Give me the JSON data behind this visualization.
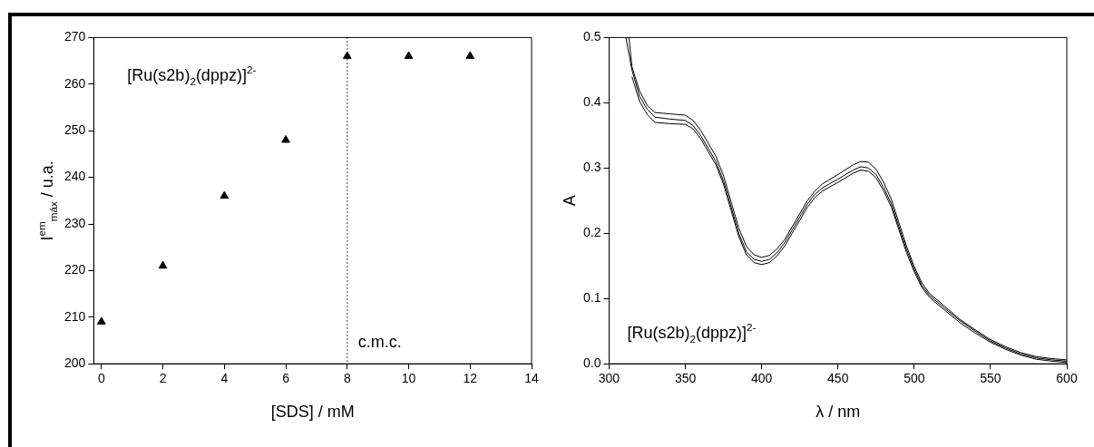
{
  "chart_data": [
    {
      "type": "scatter",
      "xlabel": "[SDS] / mM",
      "ylabel": "I$^{em}$$_{máx}$ / u.a.",
      "annotations": [
        "[Ru(s2b)$_{2}$(dppz)]$^{2-}$"
      ],
      "x": [
        0,
        2,
        4,
        6,
        8,
        10,
        12
      ],
      "series": [
        {
          "color": "#000000",
          "values": [
            209,
            221,
            236,
            248,
            266,
            266,
            266
          ]
        }
      ],
      "marker": "triangle",
      "xlim": [
        -0.25,
        14
      ],
      "xticks": [
        0,
        2,
        4,
        6,
        8,
        10,
        12,
        14
      ],
      "ylim": [
        200,
        270
      ],
      "yticks": [
        200,
        210,
        220,
        230,
        240,
        250,
        260,
        270
      ],
      "ref_lines": [
        {
          "axis": "x",
          "value": 8,
          "label": "c.m.c.",
          "line_style": "dotted",
          "color": "#000000"
        }
      ]
    },
    {
      "type": "line",
      "xlabel": "λ / nm",
      "ylabel": "A",
      "annotations": [
        "[Ru(s2b)$_{2}$(dppz)]$^{2-}$"
      ],
      "x": [
        311,
        315,
        320,
        325,
        330,
        340,
        350,
        355,
        360,
        365,
        370,
        375,
        380,
        385,
        390,
        395,
        400,
        405,
        410,
        415,
        420,
        425,
        430,
        435,
        440,
        450,
        460,
        465,
        470,
        475,
        480,
        485,
        490,
        495,
        500,
        505,
        510,
        520,
        530,
        540,
        550,
        560,
        570,
        580,
        590,
        600
      ],
      "series": [
        {
          "color": "#000000",
          "x": [
            313,
            315,
            320,
            325,
            330,
            340,
            350,
            355,
            360,
            365,
            370,
            375,
            380,
            385,
            390,
            395,
            400,
            405,
            410,
            415,
            420,
            425,
            430,
            435,
            440,
            450,
            460,
            465,
            470,
            475,
            480,
            485,
            490,
            495,
            500,
            505,
            510,
            520,
            530,
            540,
            550,
            560,
            570,
            580,
            590,
            600
          ],
          "values": [
            0.5,
            0.455,
            0.418,
            0.396,
            0.385,
            0.383,
            0.381,
            0.373,
            0.358,
            0.338,
            0.318,
            0.288,
            0.248,
            0.208,
            0.18,
            0.167,
            0.163,
            0.166,
            0.176,
            0.19,
            0.21,
            0.23,
            0.25,
            0.265,
            0.276,
            0.29,
            0.305,
            0.31,
            0.309,
            0.298,
            0.278,
            0.252,
            0.216,
            0.18,
            0.149,
            0.124,
            0.108,
            0.088,
            0.068,
            0.052,
            0.037,
            0.026,
            0.017,
            0.011,
            0.008,
            0.006
          ]
        },
        {
          "color": "#000000",
          "values": [
            0.5,
            0.45,
            0.41,
            0.39,
            0.378,
            0.375,
            0.373,
            0.365,
            0.35,
            0.33,
            0.31,
            0.28,
            0.24,
            0.2,
            0.172,
            0.16,
            0.157,
            0.16,
            0.17,
            0.185,
            0.205,
            0.225,
            0.245,
            0.26,
            0.27,
            0.283,
            0.297,
            0.302,
            0.3,
            0.29,
            0.27,
            0.245,
            0.21,
            0.175,
            0.145,
            0.12,
            0.105,
            0.085,
            0.066,
            0.05,
            0.035,
            0.024,
            0.015,
            0.009,
            0.006,
            0.004
          ]
        },
        {
          "color": "#000000",
          "x": [
            315,
            320,
            325,
            330,
            340,
            350,
            355,
            360,
            365,
            370,
            375,
            380,
            385,
            390,
            395,
            400,
            405,
            410,
            415,
            420,
            425,
            430,
            435,
            440,
            450,
            460,
            465,
            470,
            475,
            480,
            485,
            490,
            495,
            500,
            505,
            510,
            520,
            530,
            540,
            550,
            560,
            570,
            580,
            590,
            600
          ],
          "values": [
            0.44,
            0.402,
            0.382,
            0.37,
            0.368,
            0.367,
            0.36,
            0.345,
            0.325,
            0.305,
            0.275,
            0.235,
            0.195,
            0.167,
            0.155,
            0.152,
            0.155,
            0.165,
            0.18,
            0.2,
            0.22,
            0.24,
            0.255,
            0.265,
            0.278,
            0.292,
            0.297,
            0.295,
            0.285,
            0.265,
            0.24,
            0.205,
            0.17,
            0.141,
            0.117,
            0.102,
            0.082,
            0.063,
            0.047,
            0.033,
            0.022,
            0.013,
            0.007,
            0.004,
            0.002
          ]
        }
      ],
      "marker": "none",
      "line_style": "solid",
      "xlim": [
        300,
        600
      ],
      "xticks": [
        300,
        350,
        400,
        450,
        500,
        550,
        600
      ],
      "ylim": [
        0,
        0.5
      ],
      "yticks": [
        {
          "value": 0,
          "label": "0.0"
        },
        {
          "value": 0.1,
          "label": "0.1"
        },
        {
          "value": 0.2,
          "label": "0.2"
        },
        {
          "value": 0.3,
          "label": "0.3"
        },
        {
          "value": 0.4,
          "label": "0.4"
        },
        {
          "value": 0.5,
          "label": "0.5"
        }
      ]
    }
  ]
}
